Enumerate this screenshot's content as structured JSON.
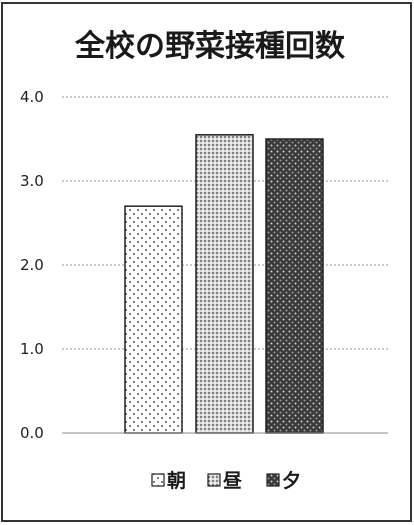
{
  "chart_data": {
    "type": "bar",
    "title": "全校の野菜接種回数",
    "xlabel": "",
    "ylabel": "",
    "categories": [
      "朝",
      "昼",
      "夕"
    ],
    "values": [
      2.7,
      3.55,
      3.5
    ],
    "ylim": [
      0,
      4
    ],
    "yticks": [
      "0.0",
      "1.0",
      "2.0",
      "3.0",
      "4.0"
    ],
    "grid": true,
    "legend": {
      "position": "bottom",
      "entries": [
        "朝",
        "昼",
        "夕"
      ]
    },
    "patterns": [
      "sparse-dots",
      "dense-dots",
      "dark-dots"
    ]
  }
}
